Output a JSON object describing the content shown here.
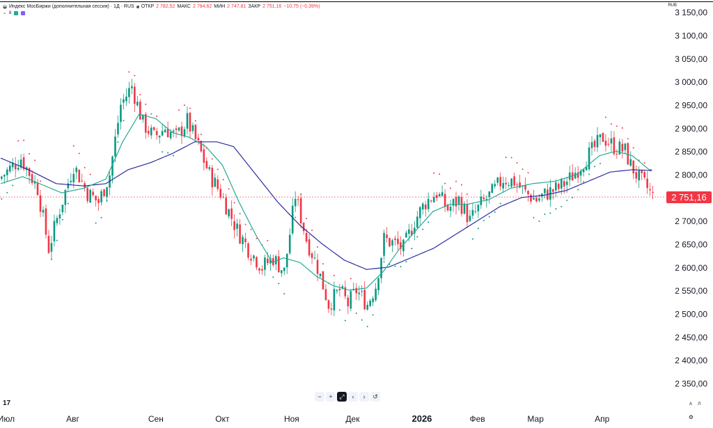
{
  "legend": {
    "title": "Индекс МосБиржи (дополнительная сессия) · 1Д · RUS",
    "open_label": "ОТКР",
    "open": "2 782,52",
    "high_label": "МАКС",
    "high": "2 784,62",
    "low_label": "МИН",
    "low": "2 747,81",
    "close_label": "ЗАКР",
    "close": "2 751,16",
    "change": "−10,75 (−0,39%)",
    "indicator_count": "8"
  },
  "currency": "RUB",
  "toolbar": {
    "zoom_out": "−",
    "zoom_in": "+",
    "scroll_left": "‹",
    "scroll_right": "›",
    "reset": "↺"
  },
  "scale_auto": "A",
  "scale_log": "Л",
  "colors": {
    "up": "#089981",
    "down": "#f23645",
    "ma_fast": "#22ab94",
    "ma_slow": "#2a2aa0",
    "sar": "#f23645",
    "sar_up": "#089981"
  },
  "chart_data": {
    "type": "candlestick",
    "last_price": "2 751,16",
    "y_ticks": [
      "3 150,00",
      "3 100,00",
      "3 050,00",
      "3 000,00",
      "2 950,00",
      "2 900,00",
      "2 850,00",
      "2 800,00",
      "2 750,00",
      "2 700,00",
      "2 650,00",
      "2 600,00",
      "2 550,00",
      "2 500,00",
      "2 450,00",
      "2 400,00",
      "2 350,00"
    ],
    "x_ticks": [
      "Июл",
      "Авг",
      "Сен",
      "Окт",
      "Ноя",
      "Дек",
      "2026",
      "Фев",
      "Мар",
      "Апр"
    ],
    "ylim": [
      2300,
      3160
    ],
    "anchors": [
      [
        0,
        2790
      ],
      [
        8,
        2835
      ],
      [
        14,
        2770
      ],
      [
        18,
        2640
      ],
      [
        22,
        2725
      ],
      [
        27,
        2820
      ],
      [
        32,
        2760
      ],
      [
        36,
        2740
      ],
      [
        40,
        2800
      ],
      [
        44,
        2950
      ],
      [
        48,
        2990
      ],
      [
        52,
        2910
      ],
      [
        56,
        2880
      ],
      [
        60,
        2900
      ],
      [
        64,
        2880
      ],
      [
        68,
        2915
      ],
      [
        72,
        2860
      ],
      [
        76,
        2800
      ],
      [
        80,
        2760
      ],
      [
        86,
        2680
      ],
      [
        90,
        2640
      ],
      [
        95,
        2600
      ],
      [
        99,
        2620
      ],
      [
        103,
        2590
      ],
      [
        107,
        2755
      ],
      [
        111,
        2660
      ],
      [
        115,
        2600
      ],
      [
        119,
        2520
      ],
      [
        123,
        2550
      ],
      [
        126,
        2520
      ],
      [
        129,
        2550
      ],
      [
        133,
        2520
      ],
      [
        136,
        2560
      ],
      [
        139,
        2660
      ],
      [
        143,
        2650
      ],
      [
        146,
        2640
      ],
      [
        150,
        2700
      ],
      [
        154,
        2740
      ],
      [
        158,
        2760
      ],
      [
        162,
        2725
      ],
      [
        166,
        2745
      ],
      [
        170,
        2700
      ],
      [
        174,
        2735
      ],
      [
        178,
        2760
      ],
      [
        182,
        2790
      ],
      [
        186,
        2785
      ],
      [
        190,
        2760
      ],
      [
        194,
        2745
      ],
      [
        198,
        2760
      ],
      [
        202,
        2770
      ],
      [
        206,
        2790
      ],
      [
        210,
        2820
      ],
      [
        214,
        2850
      ],
      [
        218,
        2880
      ],
      [
        222,
        2860
      ],
      [
        226,
        2850
      ],
      [
        228,
        2820
      ],
      [
        231,
        2790
      ],
      [
        234,
        2770
      ],
      [
        236,
        2751
      ]
    ],
    "ma_fast_anchors": [
      [
        0,
        2780
      ],
      [
        8,
        2795
      ],
      [
        14,
        2780
      ],
      [
        22,
        2760
      ],
      [
        30,
        2770
      ],
      [
        38,
        2790
      ],
      [
        44,
        2870
      ],
      [
        50,
        2930
      ],
      [
        56,
        2920
      ],
      [
        62,
        2890
      ],
      [
        68,
        2880
      ],
      [
        74,
        2860
      ],
      [
        80,
        2820
      ],
      [
        86,
        2740
      ],
      [
        92,
        2670
      ],
      [
        98,
        2610
      ],
      [
        102,
        2620
      ],
      [
        108,
        2610
      ],
      [
        114,
        2580
      ],
      [
        120,
        2560
      ],
      [
        126,
        2550
      ],
      [
        132,
        2555
      ],
      [
        138,
        2590
      ],
      [
        144,
        2640
      ],
      [
        150,
        2680
      ],
      [
        156,
        2720
      ],
      [
        162,
        2735
      ],
      [
        168,
        2735
      ],
      [
        176,
        2745
      ],
      [
        184,
        2770
      ],
      [
        192,
        2780
      ],
      [
        200,
        2785
      ],
      [
        208,
        2800
      ],
      [
        216,
        2840
      ],
      [
        222,
        2850
      ],
      [
        228,
        2840
      ],
      [
        234,
        2810
      ]
    ],
    "ma_slow_anchors": [
      [
        0,
        2835
      ],
      [
        10,
        2810
      ],
      [
        20,
        2780
      ],
      [
        30,
        2775
      ],
      [
        38,
        2780
      ],
      [
        46,
        2810
      ],
      [
        54,
        2825
      ],
      [
        62,
        2845
      ],
      [
        70,
        2870
      ],
      [
        78,
        2870
      ],
      [
        84,
        2860
      ],
      [
        92,
        2800
      ],
      [
        100,
        2740
      ],
      [
        108,
        2690
      ],
      [
        116,
        2650
      ],
      [
        124,
        2615
      ],
      [
        132,
        2595
      ],
      [
        140,
        2600
      ],
      [
        148,
        2620
      ],
      [
        156,
        2640
      ],
      [
        164,
        2670
      ],
      [
        172,
        2700
      ],
      [
        180,
        2730
      ],
      [
        188,
        2750
      ],
      [
        196,
        2755
      ],
      [
        204,
        2765
      ],
      [
        212,
        2785
      ],
      [
        220,
        2805
      ],
      [
        228,
        2810
      ],
      [
        236,
        2808
      ]
    ]
  }
}
